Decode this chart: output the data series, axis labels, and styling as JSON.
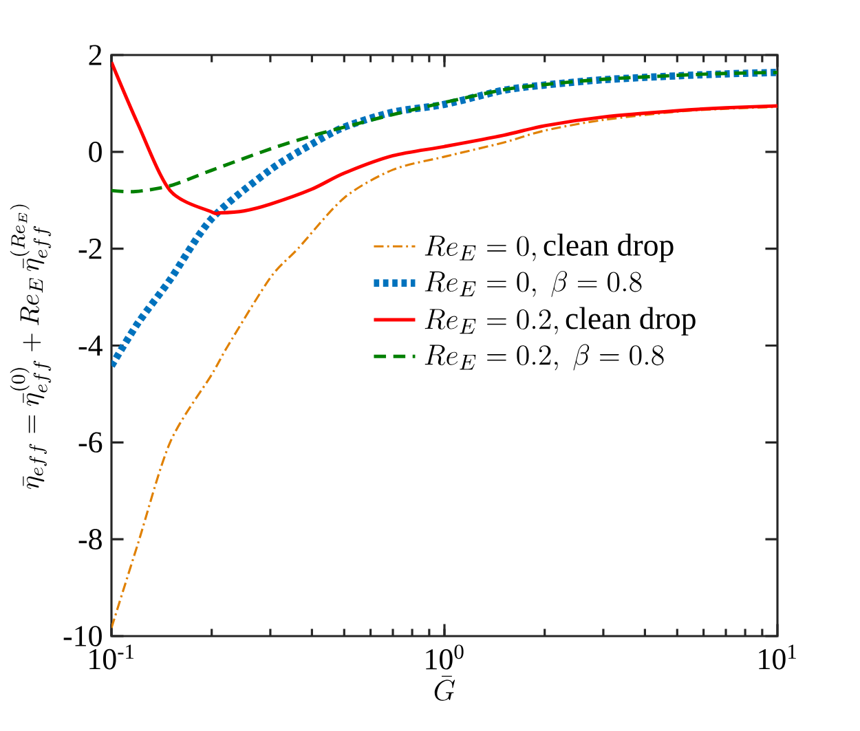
{
  "chart_data": {
    "type": "line",
    "xlabel": "\\bar{G}",
    "ylabel": "\\bar{\\eta}_{eff} = \\bar{\\eta}_{eff}^{(0)} + Re_E\\,\\bar{\\eta}_{eff}^{(Re_E)}",
    "log": "x",
    "xlim": [
      0.1,
      10
    ],
    "ylim": [
      -10,
      2
    ],
    "xticks": [
      {
        "value": 0.1,
        "label": "10$^{-1}$"
      },
      {
        "value": 1,
        "label": "10$^{0}$"
      },
      {
        "value": 10,
        "label": "10$^{1}$"
      }
    ],
    "yticks": [
      -10,
      -8,
      -6,
      -4,
      -2,
      0,
      2
    ],
    "grid": false,
    "legend": "right",
    "series": [
      {
        "name": "Re_E = 0,\\mathrm{clean\\ drop}",
        "color": "#e08000",
        "line_style": "dashdot",
        "x": [
          0.1,
          0.12,
          0.15,
          0.2,
          0.224,
          0.3,
          0.363,
          0.5,
          0.7,
          1,
          1.5,
          2,
          3,
          5,
          7,
          10
        ],
        "values": [
          -9.83,
          -8.1,
          -6.0,
          -4.6,
          -4.0,
          -2.6,
          -2.0,
          -0.95,
          -0.37,
          -0.1,
          0.19,
          0.44,
          0.66,
          0.83,
          0.89,
          0.93
        ]
      },
      {
        "name": "Re_E = 0,\\ \\beta = 0.8",
        "color": "#0072bd",
        "line_style": "dotted",
        "x": [
          0.1,
          0.12,
          0.15,
          0.2,
          0.3,
          0.4,
          0.5,
          0.7,
          1,
          1.5,
          2,
          3,
          5,
          7,
          10
        ],
        "values": [
          -4.42,
          -3.54,
          -2.64,
          -1.38,
          -0.37,
          0.16,
          0.51,
          0.82,
          0.98,
          1.27,
          1.38,
          1.49,
          1.57,
          1.61,
          1.64
        ]
      },
      {
        "name": "Re_E = 0.2,\\mathrm{clean\\ drop}",
        "color": "#ff0000",
        "line_style": "solid",
        "x": [
          0.1,
          0.12,
          0.15,
          0.2,
          0.212,
          0.25,
          0.3,
          0.4,
          0.5,
          0.7,
          1,
          1.5,
          2,
          3,
          5,
          7,
          10
        ],
        "values": [
          1.85,
          0.58,
          -0.8,
          -1.24,
          -1.26,
          -1.22,
          -1.08,
          -0.77,
          -0.44,
          -0.08,
          0.11,
          0.34,
          0.54,
          0.72,
          0.85,
          0.91,
          0.95
        ]
      },
      {
        "name": "Re_E = 0.2,\\ \\beta = 0.8",
        "color": "#008000",
        "line_style": "dashed",
        "x": [
          0.1,
          0.118,
          0.15,
          0.2,
          0.3,
          0.4,
          0.5,
          0.7,
          1,
          1.5,
          2,
          3,
          5,
          7,
          10
        ],
        "values": [
          -0.8,
          -0.82,
          -0.7,
          -0.38,
          0.06,
          0.33,
          0.51,
          0.77,
          1.02,
          1.28,
          1.39,
          1.5,
          1.58,
          1.62,
          1.64
        ]
      }
    ]
  }
}
